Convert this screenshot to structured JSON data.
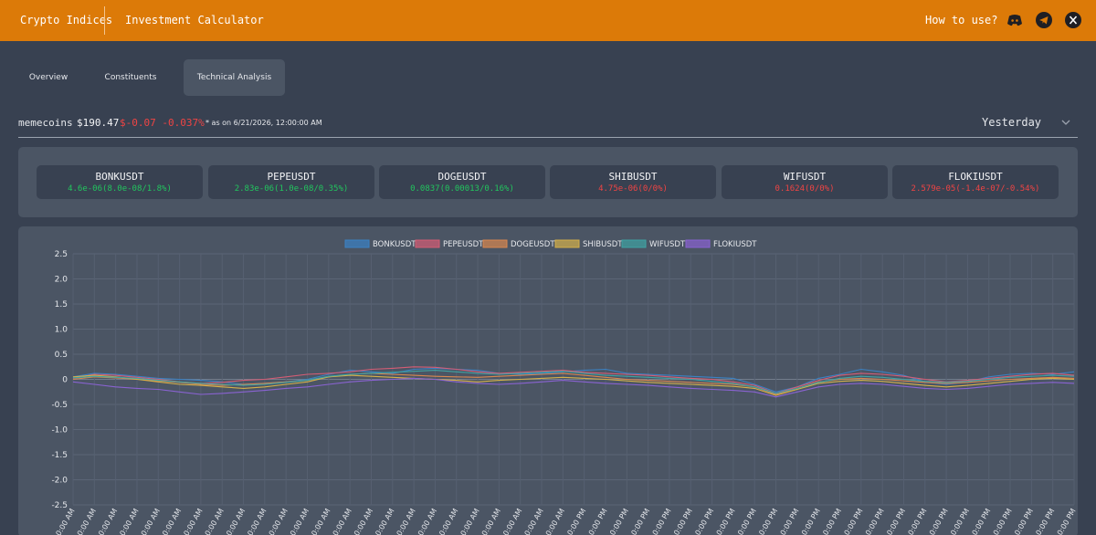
{
  "nav": {
    "brand": "Crypto Indices",
    "calculator": "Investment Calculator",
    "how_to": "How to use?",
    "social_icons": [
      "discord-icon",
      "telegram-icon",
      "x-icon"
    ]
  },
  "tabs": [
    "Overview",
    "Constituents",
    "Technical Analysis"
  ],
  "active_tab": "Technical Analysis",
  "index": {
    "name": "memecoins",
    "price": "$190.47",
    "change": "$-0.07 -0.037%",
    "as_of": "* as on 6/21/2026, 12:00:00 AM",
    "range": "Yesterday"
  },
  "tickers": [
    {
      "name": "BONKUSDT",
      "value": "4.6e-06(8.0e-08/1.8%)",
      "dir": "up"
    },
    {
      "name": "PEPEUSDT",
      "value": "2.83e-06(1.0e-08/0.35%)",
      "dir": "up"
    },
    {
      "name": "DOGEUSDT",
      "value": "0.0837(0.00013/0.16%)",
      "dir": "up"
    },
    {
      "name": "SHIBUSDT",
      "value": "4.75e-06(0/0%)",
      "dir": "down"
    },
    {
      "name": "WIFUSDT",
      "value": "0.1624(0/0%)",
      "dir": "down"
    },
    {
      "name": "FLOKIUSDT",
      "value": "2.579e-05(-1.4e-07/-0.54%)",
      "dir": "down"
    }
  ],
  "colors": {
    "up": "#22c55e",
    "down": "#ef4444",
    "accent": "#dc7a08"
  },
  "chart_data": {
    "type": "line",
    "ylim": [
      -2.5,
      2.5
    ],
    "yticks": [
      "2.5",
      "2.0",
      "1.5",
      "1.0",
      "0.5",
      "0",
      "-0.5",
      "-1.0",
      "-1.5",
      "-2.0",
      "-2.5"
    ],
    "x_count": 48,
    "x_tick_labels": [
      "0:00 AM",
      "0:00 AM",
      "0:00 AM",
      "0:00 AM",
      "0:00 AM",
      "0:00 AM",
      "0:00 AM",
      "0:00 AM",
      "0:00 AM",
      "0:00 AM",
      "0:00 AM",
      "0:00 AM",
      "0:00 AM",
      "0:00 AM",
      "0:00 AM",
      "0:00 AM",
      "0:00 AM",
      "0:00 AM",
      "0:00 AM",
      "0:00 AM",
      "0:00 AM",
      "0:00 AM",
      "0:00 AM",
      "0:00 AM",
      "0:00 PM",
      "0:00 PM",
      "0:00 PM",
      "0:00 PM",
      "0:00 PM",
      "0:00 PM",
      "0:00 PM",
      "0:00 PM",
      "0:00 PM",
      "0:00 PM",
      "0:00 PM",
      "0:00 PM",
      "0:00 PM",
      "0:00 PM",
      "0:00 PM",
      "0:00 PM",
      "0:00 PM",
      "0:00 PM",
      "0:00 PM",
      "0:00 PM",
      "0:00 PM",
      "0:00 PM",
      "0:00 PM",
      "0:00 PM"
    ],
    "grid": true,
    "legend_position": "top-center",
    "series": [
      {
        "name": "BONKUSDT",
        "color": "#3b82c4",
        "values": [
          0.05,
          0.12,
          0.1,
          0.06,
          0.02,
          0.0,
          -0.02,
          -0.05,
          -0.1,
          -0.08,
          -0.05,
          0.0,
          0.1,
          0.18,
          0.15,
          0.12,
          0.2,
          0.22,
          0.2,
          0.18,
          0.12,
          0.1,
          0.12,
          0.15,
          0.18,
          0.2,
          0.12,
          0.1,
          0.08,
          0.06,
          0.04,
          0.02,
          -0.1,
          -0.25,
          -0.15,
          0.02,
          0.1,
          0.2,
          0.15,
          0.08,
          -0.05,
          -0.1,
          -0.05,
          0.05,
          0.1,
          0.12,
          0.1,
          0.15
        ]
      },
      {
        "name": "PEPEUSDT",
        "color": "#d65d75",
        "values": [
          0.02,
          0.1,
          0.08,
          0.04,
          0.0,
          -0.05,
          -0.08,
          -0.06,
          -0.02,
          0.0,
          0.05,
          0.1,
          0.12,
          0.15,
          0.2,
          0.22,
          0.25,
          0.24,
          0.2,
          0.15,
          0.12,
          0.14,
          0.16,
          0.18,
          0.14,
          0.12,
          0.1,
          0.08,
          0.05,
          0.02,
          0.0,
          -0.05,
          -0.12,
          -0.28,
          -0.15,
          -0.02,
          0.08,
          0.12,
          0.1,
          0.06,
          0.0,
          -0.05,
          -0.02,
          0.02,
          0.06,
          0.1,
          0.12,
          0.08
        ]
      },
      {
        "name": "DOGEUSDT",
        "color": "#d9874f",
        "values": [
          0.0,
          0.05,
          0.03,
          0.0,
          -0.03,
          -0.06,
          -0.1,
          -0.12,
          -0.1,
          -0.08,
          -0.05,
          -0.02,
          0.05,
          0.1,
          0.12,
          0.1,
          0.08,
          0.06,
          0.05,
          0.04,
          0.06,
          0.08,
          0.1,
          0.12,
          0.08,
          0.04,
          0.0,
          -0.02,
          -0.04,
          -0.06,
          -0.08,
          -0.1,
          -0.15,
          -0.3,
          -0.18,
          -0.05,
          0.0,
          0.02,
          0.0,
          -0.03,
          -0.06,
          -0.08,
          -0.06,
          -0.03,
          0.0,
          0.02,
          0.04,
          0.02
        ]
      },
      {
        "name": "SHIBUSDT",
        "color": "#d4b04a",
        "values": [
          0.05,
          0.08,
          0.05,
          0.0,
          -0.05,
          -0.1,
          -0.12,
          -0.15,
          -0.18,
          -0.15,
          -0.1,
          -0.05,
          0.05,
          0.08,
          0.06,
          0.04,
          0.02,
          0.0,
          -0.02,
          -0.05,
          -0.02,
          0.0,
          0.02,
          0.04,
          0.02,
          0.0,
          -0.03,
          -0.06,
          -0.08,
          -0.1,
          -0.12,
          -0.14,
          -0.18,
          -0.32,
          -0.2,
          -0.08,
          -0.04,
          -0.02,
          -0.04,
          -0.08,
          -0.12,
          -0.15,
          -0.12,
          -0.08,
          -0.04,
          0.0,
          0.02,
          0.0
        ]
      },
      {
        "name": "WIFUSDT",
        "color": "#3fa3a3",
        "values": [
          0.03,
          0.06,
          0.04,
          0.02,
          -0.02,
          -0.05,
          -0.08,
          -0.1,
          -0.12,
          -0.1,
          -0.06,
          -0.02,
          0.06,
          0.1,
          0.12,
          0.14,
          0.16,
          0.18,
          0.15,
          0.12,
          0.1,
          0.12,
          0.14,
          0.16,
          0.12,
          0.08,
          0.06,
          0.04,
          0.02,
          0.0,
          -0.04,
          -0.08,
          -0.15,
          -0.28,
          -0.18,
          -0.06,
          0.02,
          0.06,
          0.04,
          0.0,
          -0.04,
          -0.06,
          -0.04,
          0.0,
          0.04,
          0.06,
          0.08,
          0.06
        ]
      },
      {
        "name": "FLOKIUSDT",
        "color": "#8a63d2",
        "values": [
          -0.05,
          -0.1,
          -0.15,
          -0.18,
          -0.2,
          -0.25,
          -0.3,
          -0.28,
          -0.25,
          -0.22,
          -0.18,
          -0.15,
          -0.1,
          -0.05,
          -0.02,
          0.0,
          0.02,
          0.0,
          -0.05,
          -0.08,
          -0.1,
          -0.08,
          -0.05,
          -0.02,
          -0.05,
          -0.08,
          -0.1,
          -0.12,
          -0.15,
          -0.18,
          -0.2,
          -0.22,
          -0.25,
          -0.35,
          -0.25,
          -0.15,
          -0.1,
          -0.08,
          -0.1,
          -0.14,
          -0.18,
          -0.2,
          -0.18,
          -0.14,
          -0.1,
          -0.08,
          -0.06,
          -0.08
        ]
      }
    ]
  }
}
